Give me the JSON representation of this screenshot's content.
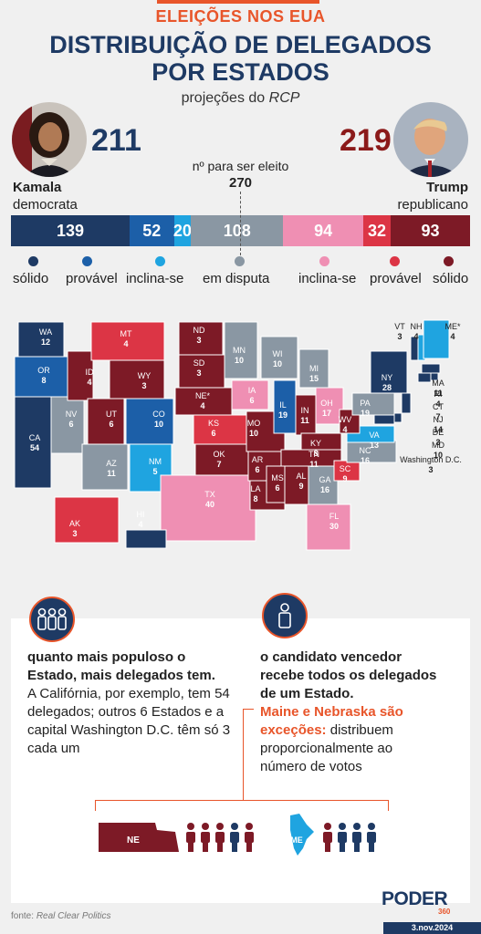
{
  "header": {
    "kicker": "ELEIÇÕES NOS EUA",
    "title_line1": "DISTRIBUIÇÃO DE DELEGADOS",
    "title_line2": "POR ESTADOS",
    "subtitle_prefix": "projeções do ",
    "subtitle_source": "RCP"
  },
  "candidates": {
    "dem": {
      "name": "Kamala",
      "party": "democrata",
      "total": "211"
    },
    "rep": {
      "name": "Trump",
      "party": "republicano",
      "total": "219"
    }
  },
  "threshold": {
    "label": "nº para ser eleito",
    "value": "270"
  },
  "bar_segments": [
    {
      "category": "sólido",
      "party": "dem",
      "label": "139",
      "value": 139,
      "color": "#1e3a64"
    },
    {
      "category": "provável",
      "party": "dem",
      "label": "52",
      "value": 52,
      "color": "#1c5fa8"
    },
    {
      "category": "inclina-se",
      "party": "dem",
      "label": "20",
      "value": 20,
      "color": "#1fa4e0"
    },
    {
      "category": "em disputa",
      "party": "none",
      "label": "108",
      "value": 108,
      "color": "#8a97a3"
    },
    {
      "category": "inclina-se",
      "party": "rep",
      "label": "94",
      "value": 94,
      "color": "#ef8fb3"
    },
    {
      "category": "provável",
      "party": "rep",
      "label": "32",
      "value": 32,
      "color": "#dc3545"
    },
    {
      "category": "sólido",
      "party": "rep",
      "label": "93",
      "value": 93,
      "color": "#7d1a26"
    }
  ],
  "legend": [
    {
      "label": "sólido",
      "color": "#1e3a64"
    },
    {
      "label": "provável",
      "color": "#1c5fa8"
    },
    {
      "label": "inclina-se",
      "color": "#1fa4e0"
    },
    {
      "label": "em disputa",
      "color": "#8a97a3"
    },
    {
      "label": "inclina-se",
      "color": "#ef8fb3"
    },
    {
      "label": "provável",
      "color": "#dc3545"
    },
    {
      "label": "sólido",
      "color": "#7d1a26"
    }
  ],
  "states": [
    {
      "abbr": "WA",
      "votes": "12",
      "status": "dem-solid"
    },
    {
      "abbr": "OR",
      "votes": "8",
      "status": "dem-likely"
    },
    {
      "abbr": "CA",
      "votes": "54",
      "status": "dem-solid"
    },
    {
      "abbr": "NV",
      "votes": "6",
      "status": "tossup"
    },
    {
      "abbr": "ID",
      "votes": "4",
      "status": "rep-solid"
    },
    {
      "abbr": "MT",
      "votes": "4",
      "status": "rep-likely"
    },
    {
      "abbr": "WY",
      "votes": "3",
      "status": "rep-solid"
    },
    {
      "abbr": "UT",
      "votes": "6",
      "status": "rep-solid"
    },
    {
      "abbr": "AZ",
      "votes": "11",
      "status": "tossup"
    },
    {
      "abbr": "CO",
      "votes": "10",
      "status": "dem-likely"
    },
    {
      "abbr": "NM",
      "votes": "5",
      "status": "dem-lean"
    },
    {
      "abbr": "ND",
      "votes": "3",
      "status": "rep-solid"
    },
    {
      "abbr": "SD",
      "votes": "3",
      "status": "rep-solid"
    },
    {
      "abbr": "NE*",
      "votes": "4",
      "status": "rep-solid"
    },
    {
      "abbr": "KS",
      "votes": "6",
      "status": "rep-likely"
    },
    {
      "abbr": "OK",
      "votes": "7",
      "status": "rep-solid"
    },
    {
      "abbr": "TX",
      "votes": "40",
      "status": "rep-lean"
    },
    {
      "abbr": "MN",
      "votes": "10",
      "status": "tossup"
    },
    {
      "abbr": "IA",
      "votes": "6",
      "status": "rep-lean"
    },
    {
      "abbr": "MO",
      "votes": "10",
      "status": "rep-solid"
    },
    {
      "abbr": "AR",
      "votes": "6",
      "status": "rep-solid"
    },
    {
      "abbr": "LA",
      "votes": "8",
      "status": "rep-solid"
    },
    {
      "abbr": "WI",
      "votes": "10",
      "status": "tossup"
    },
    {
      "abbr": "IL",
      "votes": "19",
      "status": "dem-likely"
    },
    {
      "abbr": "MI",
      "votes": "15",
      "status": "tossup"
    },
    {
      "abbr": "IN",
      "votes": "11",
      "status": "rep-solid"
    },
    {
      "abbr": "OH",
      "votes": "17",
      "status": "rep-lean"
    },
    {
      "abbr": "KY",
      "votes": "8",
      "status": "rep-solid"
    },
    {
      "abbr": "TN",
      "votes": "11",
      "status": "rep-solid"
    },
    {
      "abbr": "MS",
      "votes": "6",
      "status": "rep-solid"
    },
    {
      "abbr": "AL",
      "votes": "9",
      "status": "rep-solid"
    },
    {
      "abbr": "GA",
      "votes": "16",
      "status": "tossup"
    },
    {
      "abbr": "FL",
      "votes": "30",
      "status": "rep-lean"
    },
    {
      "abbr": "SC",
      "votes": "9",
      "status": "rep-likely"
    },
    {
      "abbr": "NC",
      "votes": "16",
      "status": "tossup"
    },
    {
      "abbr": "VA",
      "votes": "13",
      "status": "dem-lean"
    },
    {
      "abbr": "WV",
      "votes": "4",
      "status": "rep-solid"
    },
    {
      "abbr": "PA",
      "votes": "19",
      "status": "tossup"
    },
    {
      "abbr": "NY",
      "votes": "28",
      "status": "dem-solid"
    },
    {
      "abbr": "VT",
      "votes": "3",
      "status": "dem-solid"
    },
    {
      "abbr": "NH",
      "votes": "4",
      "status": "dem-lean"
    },
    {
      "abbr": "ME*",
      "votes": "4",
      "status": "dem-lean"
    },
    {
      "abbr": "MA",
      "votes": "11",
      "status": "dem-solid"
    },
    {
      "abbr": "RI",
      "votes": "4",
      "status": "dem-solid"
    },
    {
      "abbr": "CT",
      "votes": "7",
      "status": "dem-solid"
    },
    {
      "abbr": "NJ",
      "votes": "14",
      "status": "dem-solid"
    },
    {
      "abbr": "DE",
      "votes": "3",
      "status": "dem-solid"
    },
    {
      "abbr": "MD",
      "votes": "10",
      "status": "dem-solid"
    },
    {
      "abbr": "Washington D.C.",
      "votes": "3",
      "status": "dem-solid"
    },
    {
      "abbr": "AK",
      "votes": "3",
      "status": "rep-likely"
    },
    {
      "abbr": "HI",
      "votes": "4",
      "status": "dem-solid"
    }
  ],
  "info": {
    "left_bold": "quanto mais populoso o Estado, mais delegados tem.",
    "left_text": "A Califórnia, por exemplo, tem 54 delegados; outros 6 Estados e a capital Washington D.C. têm só 3 cada um",
    "right_bold": "o candidato vencedor recebe todos os delegados de um Estado.",
    "right_orange": "Maine e Nebraska são exceções:",
    "right_text": "distribuem proporcionalmente ao número de votos",
    "ne_label": "NE",
    "me_label": "ME"
  },
  "footer": {
    "source_prefix": "fonte: ",
    "source_name": "Real Clear Politics",
    "logo": "PODER",
    "logo_sub": "360",
    "date": "3.nov.2024"
  },
  "icons": [
    "people-group-icon",
    "person-icon"
  ]
}
